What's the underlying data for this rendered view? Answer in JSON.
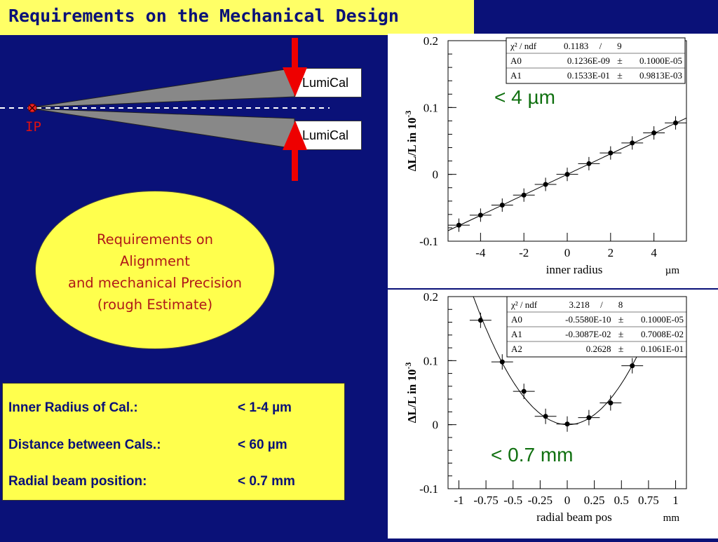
{
  "slide": {
    "title": "Requirements on the Mechanical Design",
    "detector": {
      "lumical_top": "LumiCal",
      "lumical_bottom": "LumiCal",
      "ip_label": "IP"
    },
    "ellipse_lines": [
      "Requirements on",
      "Alignment",
      "and mechanical Precision",
      "(rough Estimate)"
    ],
    "requirements": [
      {
        "label": "Inner Radius of Cal.:",
        "value": "< 1-4 µm"
      },
      {
        "label": "Distance between Cals.:",
        "value": "< 60 µm"
      },
      {
        "label": "Radial beam position:",
        "value": "< 0.7 mm"
      }
    ],
    "colors": {
      "background": "#0a1178",
      "title_bg": "#ffff66",
      "ellipse": "#ffff4d",
      "arrow": "#ee0000",
      "annotation": "#107010"
    }
  },
  "chart_data": [
    {
      "type": "scatter",
      "xlabel": "inner radius",
      "xunit": "µm",
      "ylabel": "ΔL/L in 10",
      "ylabel_exp": "-3",
      "xlim": [
        -5.5,
        5.5
      ],
      "ylim": [
        -0.1,
        0.2
      ],
      "xticks": [
        -4,
        -2,
        0,
        2,
        4
      ],
      "yticks": [
        -0.1,
        0,
        0.1,
        0.2
      ],
      "ytick_labels": [
        "-0.1",
        "0",
        "0.1",
        "0.2"
      ],
      "points": {
        "x": [
          -5,
          -4,
          -3,
          -2,
          -1,
          0,
          1,
          2,
          3,
          4,
          5
        ],
        "y": [
          -0.076,
          -0.061,
          -0.046,
          -0.031,
          -0.015,
          0.0,
          0.016,
          0.032,
          0.047,
          0.062,
          0.077
        ],
        "xerr": 0.5,
        "yerr": 0.01
      },
      "fit": {
        "type": "linear",
        "a0": 0.0,
        "a1": 0.01533
      },
      "stats": {
        "header": [
          "χ² / ndf",
          "0.1183",
          "/",
          "9"
        ],
        "rows": [
          {
            "name": "A0",
            "value": "0.1236E-09",
            "pm": "±",
            "err": "0.1000E-05"
          },
          {
            "name": "A1",
            "value": "0.1533E-01",
            "pm": "±",
            "err": "0.9813E-03"
          }
        ]
      },
      "annotation": "< 4 µm"
    },
    {
      "type": "scatter",
      "xlabel": "radial beam pos",
      "xunit": "mm",
      "ylabel": "ΔL/L in 10",
      "ylabel_exp": "-3",
      "xlim": [
        -1.1,
        1.1
      ],
      "ylim": [
        -0.1,
        0.2
      ],
      "xticks": [
        -1,
        -0.75,
        -0.5,
        -0.25,
        0,
        0.25,
        0.5,
        0.75,
        1
      ],
      "xtick_labels": [
        "-1",
        "-0.75",
        "-0.5",
        "-0.25",
        "0",
        "0.25",
        "0.5",
        "0.75",
        "1"
      ],
      "yticks": [
        -0.1,
        0,
        0.1,
        0.2
      ],
      "ytick_labels": [
        "-0.1",
        "0",
        "0.1",
        "0.2"
      ],
      "points": {
        "x": [
          -0.8,
          -0.6,
          -0.4,
          -0.2,
          0,
          0.2,
          0.4,
          0.6,
          0.8
        ],
        "y": [
          0.163,
          0.098,
          0.052,
          0.013,
          0.001,
          0.011,
          0.034,
          0.092,
          0.175
        ],
        "xerr": 0.1,
        "yerr": 0.012
      },
      "fit": {
        "type": "quadratic",
        "a0": 0.0,
        "a1": -0.003087,
        "a2": 0.2628
      },
      "stats": {
        "header": [
          "χ² / ndf",
          "3.218",
          "/",
          "8"
        ],
        "rows": [
          {
            "name": "A0",
            "value": "-0.5580E-10",
            "pm": "±",
            "err": "0.1000E-05"
          },
          {
            "name": "A1",
            "value": "-0.3087E-02",
            "pm": "±",
            "err": "0.7008E-02"
          },
          {
            "name": "A2",
            "value": "0.2628",
            "pm": "±",
            "err": "0.1061E-01"
          }
        ]
      },
      "annotation": "< 0.7 mm"
    }
  ]
}
